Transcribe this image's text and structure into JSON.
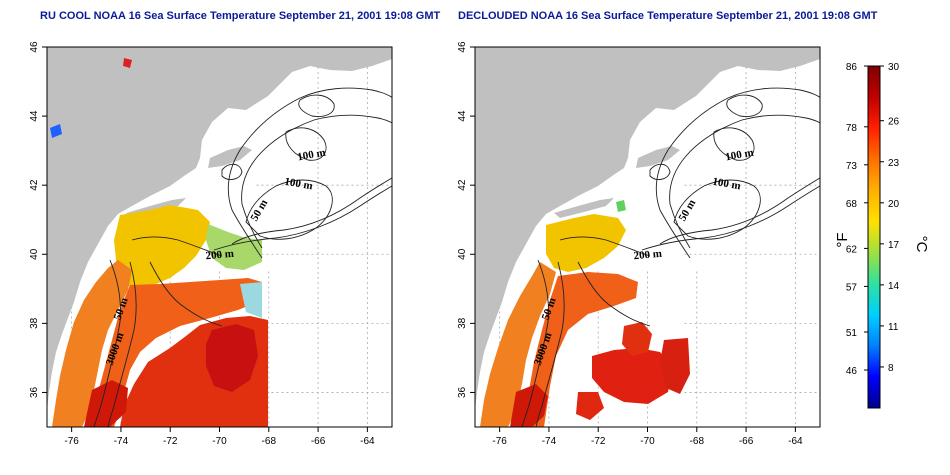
{
  "panels": [
    {
      "title": "RU COOL NOAA 16 Sea Surface Temperature September 21, 2001 19:08 GMT",
      "contour_labels": [
        "100 m",
        "100 m",
        "50 m",
        "200 m",
        "50 m",
        "3000 m"
      ]
    },
    {
      "title": "DECLOUDED NOAA 16 Sea Surface Temperature September 21, 2001 19:08 GMT",
      "contour_labels": [
        "100 m",
        "100 m",
        "50 m",
        "200 m",
        "50 m",
        "3000 m"
      ]
    }
  ],
  "axes": {
    "x_ticks": [
      "-76",
      "-74",
      "-72",
      "-70",
      "-68",
      "-66",
      "-64"
    ],
    "y_ticks": [
      "36",
      "38",
      "40",
      "42",
      "44",
      "46"
    ]
  },
  "colorbar": {
    "fahrenheit_ticks": [
      "86",
      "78",
      "73",
      "68",
      "62",
      "57",
      "51",
      "46"
    ],
    "celsius_ticks": [
      "30",
      "26",
      "23",
      "20",
      "17",
      "14",
      "11",
      "8"
    ],
    "fahrenheit_unit": "°F",
    "celsius_unit": "°C",
    "colors": [
      "#00008b",
      "#0000ff",
      "#0080ff",
      "#00d0ff",
      "#30e0a0",
      "#a0e040",
      "#ffe000",
      "#ffb000",
      "#ff7000",
      "#ff2000",
      "#c00000",
      "#800000"
    ]
  },
  "colors": {
    "land": "#c0c0c0",
    "title": "#0a1a9a",
    "grid": "#aaaaaa"
  }
}
